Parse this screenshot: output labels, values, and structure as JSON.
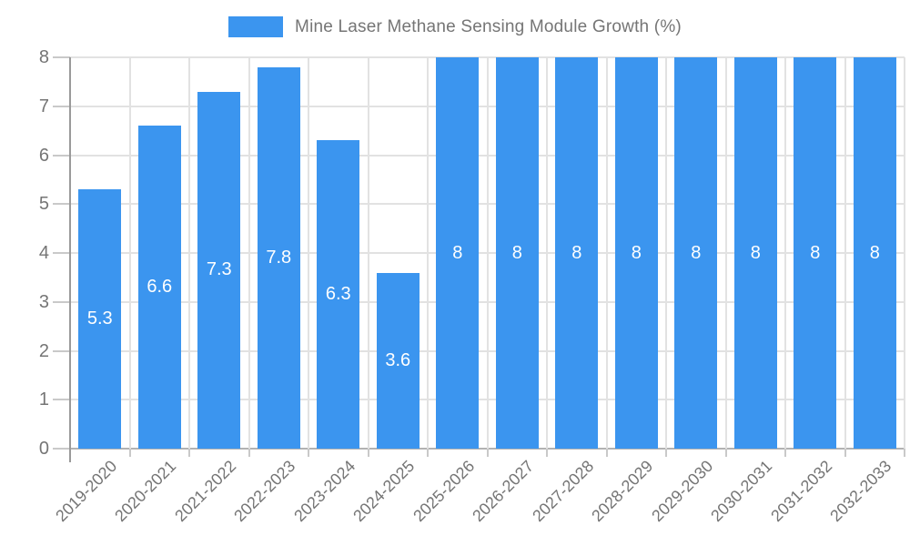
{
  "legend": {
    "label": "Mine Laser Methane Sensing Module Growth (%)",
    "swatch_color": "#3b95ef"
  },
  "colors": {
    "bar": "#3b95ef",
    "gridline": "#e2e2e2",
    "axis_line": "#9a9a9a",
    "baseline": "#b2b2b2",
    "tick": "#c9c9c9",
    "label_text": "#757575",
    "value_label": "#ffffff",
    "background": "#ffffff"
  },
  "chart_data": {
    "type": "bar",
    "title": "Mine Laser Methane Sensing Module Growth (%)",
    "legend_position": "top-center",
    "categories": [
      "2019-2020",
      "2020-2021",
      "2021-2022",
      "2022-2023",
      "2023-2024",
      "2024-2025",
      "2025-2026",
      "2026-2027",
      "2027-2028",
      "2028-2029",
      "2029-2030",
      "2030-2031",
      "2031-2032",
      "2032-2033"
    ],
    "values": [
      5.3,
      6.6,
      7.3,
      7.8,
      6.3,
      3.6,
      8,
      8,
      8,
      8,
      8,
      8,
      8,
      8
    ],
    "value_labels": [
      "5.3",
      "6.6",
      "7.3",
      "7.8",
      "6.3",
      "3.6",
      "8",
      "8",
      "8",
      "8",
      "8",
      "8",
      "8",
      "8"
    ],
    "xlabel": "",
    "ylabel": "",
    "ylim": [
      0,
      8
    ],
    "yticks": [
      0,
      1,
      2,
      3,
      4,
      5,
      6,
      7,
      8
    ],
    "grid": true,
    "x_tick_rotation_deg": 45,
    "value_labels_inside_bars": true
  }
}
